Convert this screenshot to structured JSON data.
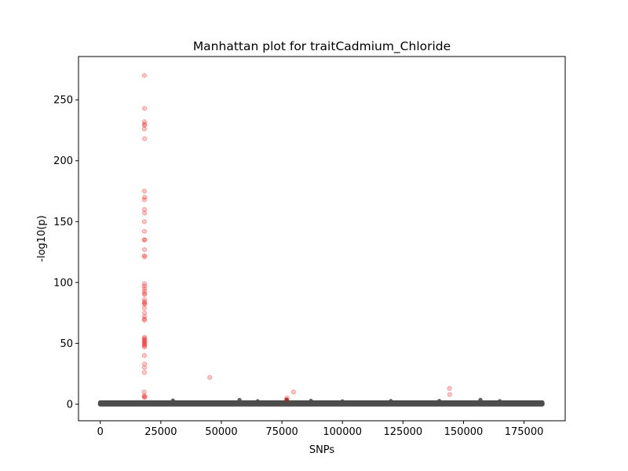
{
  "chart_data": {
    "type": "scatter",
    "title": "Manhattan plot for traitCadmium_Chloride",
    "xlabel": "SNPs",
    "ylabel": "-log10(p)",
    "xlim": [
      -9000,
      192000
    ],
    "ylim": [
      -13.6,
      285.6
    ],
    "xticks": [
      0,
      25000,
      50000,
      75000,
      100000,
      125000,
      150000,
      175000
    ],
    "yticks": [
      0,
      50,
      100,
      150,
      200,
      250
    ],
    "grid": false,
    "colors": {
      "significant": "#ff0000",
      "background": "#4d4d4d"
    },
    "series": [
      {
        "points": [
          [
            18200,
            270
          ],
          [
            18300,
            243
          ],
          [
            18200,
            232
          ],
          [
            18300,
            230
          ],
          [
            18250,
            229
          ],
          [
            18200,
            226
          ],
          [
            18300,
            218
          ],
          [
            18250,
            175
          ],
          [
            18300,
            170
          ],
          [
            18200,
            168
          ],
          [
            18250,
            160
          ],
          [
            18300,
            157
          ],
          [
            18200,
            150
          ],
          [
            18250,
            142
          ],
          [
            18200,
            135
          ],
          [
            18300,
            135
          ],
          [
            18250,
            127
          ],
          [
            18200,
            122
          ],
          [
            18300,
            121
          ],
          [
            18250,
            99
          ],
          [
            18200,
            97
          ],
          [
            18300,
            95
          ],
          [
            18250,
            93
          ],
          [
            18200,
            91
          ],
          [
            18300,
            90
          ],
          [
            18250,
            86
          ],
          [
            18200,
            84
          ],
          [
            18300,
            83
          ],
          [
            18250,
            82
          ],
          [
            18200,
            79
          ],
          [
            18300,
            75
          ],
          [
            18250,
            72
          ],
          [
            18200,
            70
          ],
          [
            18250,
            69
          ],
          [
            18300,
            55
          ],
          [
            18200,
            54
          ],
          [
            18250,
            53
          ],
          [
            18300,
            52
          ],
          [
            18200,
            51
          ],
          [
            18250,
            50
          ],
          [
            18300,
            49
          ],
          [
            18200,
            48
          ],
          [
            18250,
            47
          ],
          [
            18200,
            40
          ],
          [
            18300,
            33
          ],
          [
            18250,
            30
          ],
          [
            18200,
            26
          ],
          [
            18100,
            10
          ],
          [
            18200,
            7
          ],
          [
            18300,
            6
          ],
          [
            18250,
            5.5
          ],
          [
            45200,
            22
          ],
          [
            77200,
            5
          ],
          [
            76800,
            4
          ],
          [
            79800,
            10
          ],
          [
            144200,
            13
          ],
          [
            144300,
            8
          ]
        ]
      },
      {
        "points": [
          [
            0,
            0.5
          ],
          [
            0,
            1.5
          ],
          [
            182500,
            0.5
          ],
          [
            182500,
            1.5
          ],
          [
            30000,
            3
          ],
          [
            57500,
            3.5
          ],
          [
            65000,
            2.5
          ],
          [
            77000,
            3.5
          ],
          [
            87000,
            2.8
          ],
          [
            157000,
            3.6
          ],
          [
            165000,
            2.5
          ],
          [
            120000,
            2.6
          ],
          [
            100000,
            2.4
          ],
          [
            140000,
            2.7
          ]
        ],
        "band": {
          "x": [
            0,
            182500
          ],
          "y": [
            0,
            2.5
          ]
        }
      }
    ]
  }
}
